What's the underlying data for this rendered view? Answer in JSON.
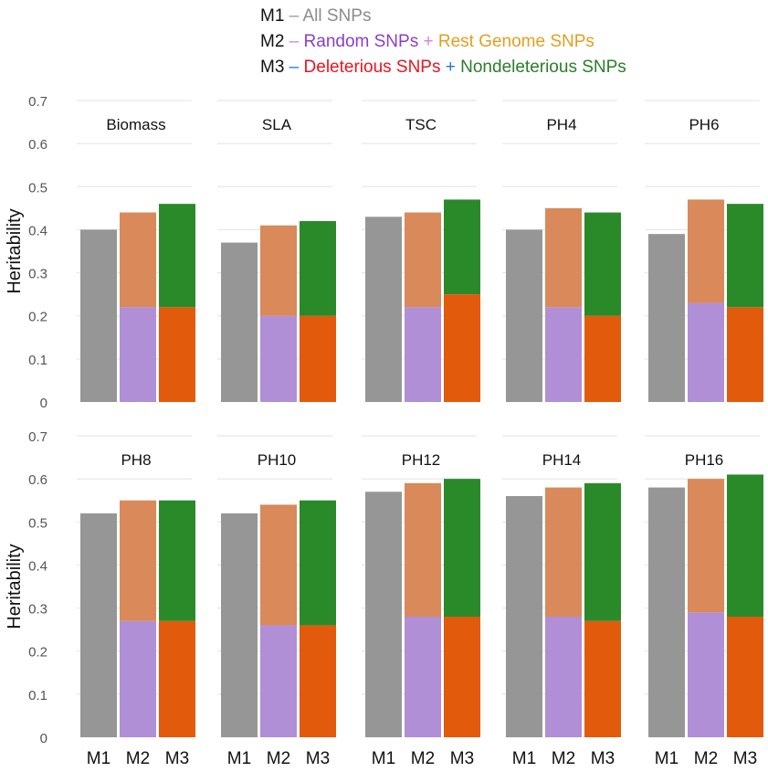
{
  "legend": {
    "rows": [
      [
        {
          "text": "M1",
          "color": "#111111"
        },
        {
          "text": " – ",
          "color": "#999999"
        },
        {
          "text": "All SNPs",
          "color": "#8c8c8c"
        }
      ],
      [
        {
          "text": "M2",
          "color": "#111111"
        },
        {
          "text": " – ",
          "color": "#e07be0"
        },
        {
          "text": "Random SNPs",
          "color": "#8a3fc6"
        },
        {
          "text": " + ",
          "color": "#e07be0"
        },
        {
          "text": "Rest Genome SNPs",
          "color": "#e0a020"
        }
      ],
      [
        {
          "text": "M3",
          "color": "#111111"
        },
        {
          "text": " – ",
          "color": "#1f77d4"
        },
        {
          "text": "Deleterious SNPs",
          "color": "#e8141e"
        },
        {
          "text": " + ",
          "color": "#1f77d4"
        },
        {
          "text": "Nondeleterious SNPs",
          "color": "#2a7d2a"
        }
      ]
    ]
  },
  "colors": {
    "all": "#969696",
    "random": "#b08fd6",
    "rest": "#d9895a",
    "deleterious": "#e25a0b",
    "nondeleterious": "#2a8a2a",
    "grid": "#e2e2e2",
    "axis_text": "#555555"
  },
  "chart_data": {
    "type": "bar",
    "stacked": true,
    "ylabel": "Heritability",
    "ylim": [
      0,
      0.7
    ],
    "yticks": [
      "0",
      "0.1",
      "0.2",
      "0.3",
      "0.4",
      "0.5",
      "0.6",
      "0.7"
    ],
    "categories": [
      "M1",
      "M2",
      "M3"
    ],
    "series": [
      {
        "name": "All SNPs",
        "color_key": "all"
      },
      {
        "name": "Random SNPs",
        "color_key": "random"
      },
      {
        "name": "Rest Genome SNPs",
        "color_key": "rest"
      },
      {
        "name": "Deleterious SNPs",
        "color_key": "deleterious"
      },
      {
        "name": "Nondeleterious SNPs",
        "color_key": "nondeleterious"
      }
    ],
    "panels": [
      {
        "title": "Biomass",
        "m1": 0.4,
        "m2": [
          0.22,
          0.44
        ],
        "m3": [
          0.22,
          0.46
        ]
      },
      {
        "title": "SLA",
        "m1": 0.37,
        "m2": [
          0.2,
          0.41
        ],
        "m3": [
          0.2,
          0.42
        ]
      },
      {
        "title": "TSC",
        "m1": 0.43,
        "m2": [
          0.22,
          0.44
        ],
        "m3": [
          0.25,
          0.47
        ]
      },
      {
        "title": "PH4",
        "m1": 0.4,
        "m2": [
          0.22,
          0.45
        ],
        "m3": [
          0.2,
          0.44
        ]
      },
      {
        "title": "PH6",
        "m1": 0.39,
        "m2": [
          0.23,
          0.47
        ],
        "m3": [
          0.22,
          0.46
        ]
      },
      {
        "title": "PH8",
        "m1": 0.52,
        "m2": [
          0.27,
          0.55
        ],
        "m3": [
          0.27,
          0.55
        ]
      },
      {
        "title": "PH10",
        "m1": 0.52,
        "m2": [
          0.26,
          0.54
        ],
        "m3": [
          0.26,
          0.55
        ]
      },
      {
        "title": "PH12",
        "m1": 0.57,
        "m2": [
          0.28,
          0.59
        ],
        "m3": [
          0.28,
          0.6
        ]
      },
      {
        "title": "PH14",
        "m1": 0.56,
        "m2": [
          0.28,
          0.58
        ],
        "m3": [
          0.27,
          0.59
        ]
      },
      {
        "title": "PH16",
        "m1": 0.58,
        "m2": [
          0.29,
          0.6
        ],
        "m3": [
          0.28,
          0.61
        ]
      }
    ]
  }
}
